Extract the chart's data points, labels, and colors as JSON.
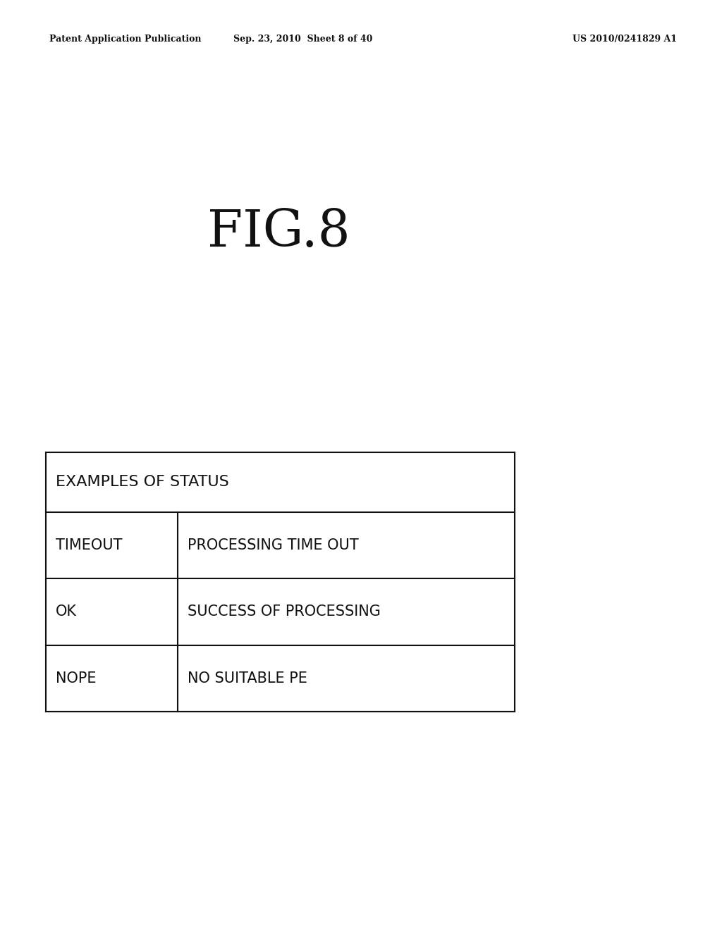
{
  "background_color": "#ffffff",
  "header_left": "Patent Application Publication",
  "header_mid": "Sep. 23, 2010  Sheet 8 of 40",
  "header_right": "US 2010/0241829 A1",
  "fig_label": "FIG.8",
  "header_row": "EXAMPLES OF STATUS",
  "rows": [
    [
      "TIMEOUT",
      "PROCESSING TIME OUT"
    ],
    [
      "OK",
      "SUCCESS OF PROCESSING"
    ],
    [
      "NOPE",
      "NO SUITABLE PE"
    ]
  ],
  "line_color": "#111111",
  "text_color": "#111111",
  "header_fontsize": 9,
  "fig_fontsize": 52,
  "cell_fontsize": 15
}
